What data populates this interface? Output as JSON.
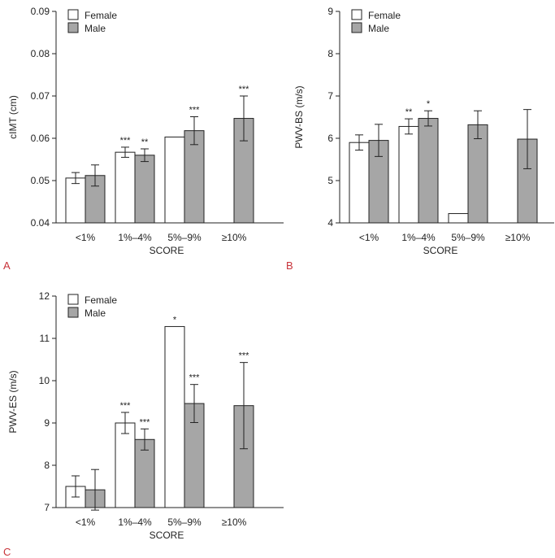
{
  "colors": {
    "female": "#ffffff",
    "male": "#a6a6a6",
    "stroke": "#222222",
    "panel_label": "#c8333a"
  },
  "chart_data": [
    {
      "panel": "A",
      "type": "bar",
      "title": "",
      "xlabel": "SCORE",
      "ylabel": "cIMT (cm)",
      "categories": [
        "<1%",
        "1%–4%",
        "5%–9%",
        "≥10%"
      ],
      "ylim": [
        0.04,
        0.09
      ],
      "yticks": [
        0.04,
        0.05,
        0.06,
        0.07,
        0.08,
        0.09
      ],
      "ytick_labels": [
        "0.04",
        "0.05",
        "0.06",
        "0.07",
        "0.08",
        "0.09"
      ],
      "legend": [
        "Female",
        "Male"
      ],
      "series": [
        {
          "name": "Female",
          "values": [
            0.0506,
            0.0567,
            0.0603,
            null
          ],
          "err": [
            0.0013,
            0.0012,
            null,
            null
          ],
          "sig": [
            "",
            "***",
            "",
            ""
          ]
        },
        {
          "name": "Male",
          "values": [
            0.0512,
            0.056,
            0.0618,
            0.0647
          ],
          "err": [
            0.0025,
            0.0015,
            0.0033,
            0.0053
          ],
          "sig": [
            "",
            "**",
            "***",
            "***"
          ]
        }
      ]
    },
    {
      "panel": "B",
      "type": "bar",
      "title": "",
      "xlabel": "SCORE",
      "ylabel": "PWV-BS (m/s)",
      "categories": [
        "<1%",
        "1%–4%",
        "5%–9%",
        "≥10%"
      ],
      "ylim": [
        4,
        9
      ],
      "yticks": [
        4,
        5,
        6,
        7,
        8,
        9
      ],
      "ytick_labels": [
        "4",
        "5",
        "6",
        "7",
        "8",
        "9"
      ],
      "legend": [
        "Female",
        "Male"
      ],
      "series": [
        {
          "name": "Female",
          "values": [
            5.9,
            6.28,
            4.22,
            null
          ],
          "err": [
            0.18,
            0.18,
            null,
            null
          ],
          "sig": [
            "",
            "**",
            "",
            ""
          ]
        },
        {
          "name": "Male",
          "values": [
            5.95,
            6.47,
            6.32,
            5.98
          ],
          "err": [
            0.38,
            0.18,
            0.33,
            0.7
          ],
          "sig": [
            "",
            "*",
            "",
            ""
          ]
        }
      ]
    },
    {
      "panel": "C",
      "type": "bar",
      "title": "",
      "xlabel": "SCORE",
      "ylabel": "PWV-ES (m/s)",
      "categories": [
        "<1%",
        "1%–4%",
        "5%–9%",
        "≥10%"
      ],
      "ylim": [
        7,
        12
      ],
      "yticks": [
        7,
        8,
        9,
        10,
        11,
        12
      ],
      "ytick_labels": [
        "7",
        "8",
        "9",
        "10",
        "11",
        "12"
      ],
      "legend": [
        "Female",
        "Male"
      ],
      "series": [
        {
          "name": "Female",
          "values": [
            7.5,
            9.0,
            11.28,
            null
          ],
          "err": [
            0.25,
            0.25,
            null,
            null
          ],
          "sig": [
            "",
            "***",
            "*",
            ""
          ]
        },
        {
          "name": "Male",
          "values": [
            7.42,
            8.61,
            9.46,
            9.41
          ],
          "err": [
            0.48,
            0.25,
            0.45,
            1.02
          ],
          "sig": [
            "",
            "***",
            "***",
            "***"
          ]
        }
      ]
    }
  ]
}
